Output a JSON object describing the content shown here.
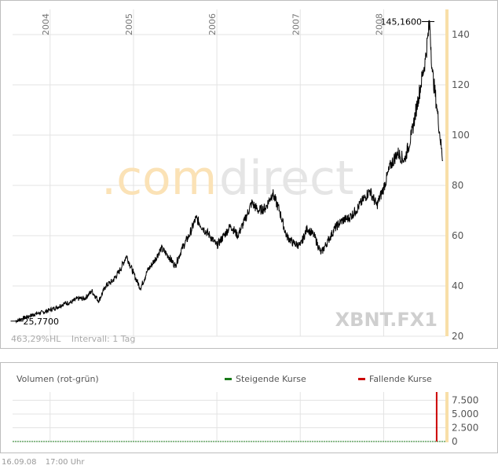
{
  "chart_data": [
    {
      "type": "line",
      "series": [
        {
          "name": "XBNT.FX1",
          "points": [
            [
              "2003-08",
              26.0
            ],
            [
              "2003-09",
              27.0
            ],
            [
              "2003-10",
              28.0
            ],
            [
              "2003-11",
              29.0
            ],
            [
              "2003-12",
              29.5
            ],
            [
              "2004-01",
              30.5
            ],
            [
              "2004-02",
              31.5
            ],
            [
              "2004-03",
              33.0
            ],
            [
              "2004-04",
              33.5
            ],
            [
              "2004-05",
              35.0
            ],
            [
              "2004-06",
              35.0
            ],
            [
              "2004-07",
              38.0
            ],
            [
              "2004-08",
              34.0
            ],
            [
              "2004-09",
              40.0
            ],
            [
              "2004-10",
              42.0
            ],
            [
              "2004-11",
              46.0
            ],
            [
              "2004-12",
              52.0
            ],
            [
              "2005-01",
              45.0
            ],
            [
              "2005-02",
              39.0
            ],
            [
              "2005-03",
              46.0
            ],
            [
              "2005-04",
              50.0
            ],
            [
              "2005-05",
              55.0
            ],
            [
              "2005-06",
              52.0
            ],
            [
              "2005-07",
              48.0
            ],
            [
              "2005-08",
              55.0
            ],
            [
              "2005-09",
              60.0
            ],
            [
              "2005-10",
              67.0
            ],
            [
              "2005-11",
              63.0
            ],
            [
              "2005-12",
              60.0
            ],
            [
              "2006-01",
              56.0
            ],
            [
              "2006-02",
              60.0
            ],
            [
              "2006-03",
              64.0
            ],
            [
              "2006-04",
              60.0
            ],
            [
              "2006-05",
              66.0
            ],
            [
              "2006-06",
              73.0
            ],
            [
              "2006-07",
              70.0
            ],
            [
              "2006-08",
              71.0
            ],
            [
              "2006-09",
              77.0
            ],
            [
              "2006-10",
              70.0
            ],
            [
              "2006-11",
              60.0
            ],
            [
              "2006-12",
              57.0
            ],
            [
              "2007-01",
              56.0
            ],
            [
              "2007-02",
              63.0
            ],
            [
              "2007-03",
              60.0
            ],
            [
              "2007-04",
              53.0
            ],
            [
              "2007-05",
              58.0
            ],
            [
              "2007-06",
              63.0
            ],
            [
              "2007-07",
              66.0
            ],
            [
              "2007-08",
              67.0
            ],
            [
              "2007-09",
              70.0
            ],
            [
              "2007-10",
              74.0
            ],
            [
              "2007-11",
              78.0
            ],
            [
              "2007-12",
              72.0
            ],
            [
              "2008-01",
              79.0
            ],
            [
              "2008-02",
              88.0
            ],
            [
              "2008-03",
              93.0
            ],
            [
              "2008-04",
              90.0
            ],
            [
              "2008-05",
              100.0
            ],
            [
              "2008-06",
              115.0
            ],
            [
              "2008-07",
              130.0
            ],
            [
              "2008-07-20",
              145.16
            ],
            [
              "2008-08",
              125.0
            ],
            [
              "2008-08-20",
              112.0
            ],
            [
              "2008-09-16",
              90.0
            ]
          ]
        }
      ],
      "x_ticks": [
        "2004",
        "2005",
        "2006",
        "2007",
        "2008"
      ],
      "y_ticks": [
        20,
        40,
        60,
        80,
        100,
        120,
        140
      ],
      "ylim": [
        20,
        150
      ],
      "annotations": {
        "high": "145,1600",
        "low": "25,7700"
      },
      "watermark": ".comdirect",
      "symbol": "XBNT.FX1",
      "stats": {
        "change": "463,29%HL",
        "interval": "Intervall: 1 Tag"
      },
      "grid": true
    },
    {
      "type": "bar",
      "title": "Volumen (rot-grün)",
      "legend": [
        {
          "label": "Steigende Kurse",
          "color": "#1a7a1a"
        },
        {
          "label": "Fallende Kurse",
          "color": "#cc0000"
        }
      ],
      "y_ticks": [
        "0",
        "2.500",
        "5.000",
        "7.500"
      ],
      "ylim": [
        0,
        9000
      ],
      "spike": {
        "date": "2008-08-20",
        "value": 9000,
        "color": "#cc0000"
      }
    }
  ],
  "footer": {
    "date": "16.09.08",
    "time": "17:00 Uhr"
  },
  "colors": {
    "grid": "#e3e3e3",
    "axis_band": "#f8dfa8",
    "line": "#000000",
    "watermark_orange": "#fbe2b6",
    "watermark_gray": "#e5e5e5",
    "symbol_gray": "#cfcfcf"
  }
}
